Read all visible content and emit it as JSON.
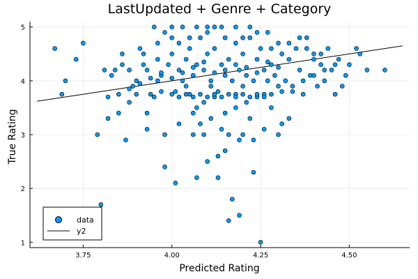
{
  "chart_data": {
    "type": "scatter",
    "title": "LastUpdated + Genre + Category",
    "xlabel": "Predicted Rating",
    "ylabel": "True Rating",
    "xlim": [
      3.6,
      4.67
    ],
    "ylim": [
      0.9,
      5.1
    ],
    "xticks": [
      3.75,
      4.0,
      4.25,
      4.5
    ],
    "xtick_labels": [
      "3.75",
      "4.00",
      "4.25",
      "4.50"
    ],
    "yticks": [
      1,
      2,
      3,
      4,
      5
    ],
    "ytick_labels": [
      "1",
      "2",
      "3",
      "4",
      "5"
    ],
    "grid": true,
    "legend_position": "bottom-left",
    "series": [
      {
        "name": "data",
        "kind": "scatter",
        "color": "#009AFA",
        "points": [
          [
            3.67,
            4.6
          ],
          [
            3.69,
            3.75
          ],
          [
            3.7,
            4.0
          ],
          [
            3.73,
            4.4
          ],
          [
            3.75,
            4.7
          ],
          [
            3.79,
            3.0
          ],
          [
            3.8,
            1.7
          ],
          [
            3.81,
            4.2
          ],
          [
            3.82,
            3.3
          ],
          [
            3.83,
            4.1
          ],
          [
            3.84,
            4.2
          ],
          [
            3.85,
            3.4
          ],
          [
            3.86,
            4.3
          ],
          [
            3.86,
            4.5
          ],
          [
            3.87,
            2.9
          ],
          [
            3.88,
            3.6
          ],
          [
            3.89,
            3.9
          ],
          [
            3.9,
            4.0
          ],
          [
            3.9,
            3.75
          ],
          [
            3.91,
            4.6
          ],
          [
            3.92,
            4.3
          ],
          [
            3.93,
            3.1
          ],
          [
            3.93,
            3.4
          ],
          [
            3.93,
            4.2
          ],
          [
            3.94,
            3.75
          ],
          [
            3.95,
            3.7
          ],
          [
            3.96,
            4.0
          ],
          [
            3.96,
            4.4
          ],
          [
            3.97,
            3.8
          ],
          [
            3.97,
            4.1
          ],
          [
            3.98,
            2.4
          ],
          [
            3.99,
            4.3
          ],
          [
            4.0,
            5.0
          ],
          [
            4.0,
            4.5
          ],
          [
            4.01,
            3.8
          ],
          [
            4.01,
            2.1
          ],
          [
            4.02,
            4.2
          ],
          [
            4.02,
            4.7
          ],
          [
            4.03,
            4.0
          ],
          [
            4.03,
            5.0
          ],
          [
            4.04,
            3.9
          ],
          [
            4.04,
            4.4
          ],
          [
            4.05,
            3.75
          ],
          [
            4.05,
            4.6
          ],
          [
            4.06,
            3.0
          ],
          [
            4.06,
            4.1
          ],
          [
            4.07,
            4.3
          ],
          [
            4.07,
            3.5
          ],
          [
            4.08,
            4.8
          ],
          [
            4.08,
            3.2
          ],
          [
            4.09,
            3.0
          ],
          [
            4.09,
            4.2
          ],
          [
            4.1,
            4.5
          ],
          [
            4.1,
            5.0
          ],
          [
            4.11,
            3.9
          ],
          [
            4.11,
            4.0
          ],
          [
            4.12,
            3.7
          ],
          [
            4.12,
            4.6
          ],
          [
            4.13,
            2.2
          ],
          [
            4.13,
            3.8
          ],
          [
            4.14,
            4.3
          ],
          [
            4.14,
            5.0
          ],
          [
            4.15,
            4.1
          ],
          [
            4.15,
            3.4
          ],
          [
            4.16,
            4.4
          ],
          [
            4.16,
            3.0
          ],
          [
            4.17,
            1.8
          ],
          [
            4.17,
            4.0
          ],
          [
            4.18,
            4.7
          ],
          [
            4.18,
            3.75
          ],
          [
            4.19,
            4.2
          ],
          [
            4.19,
            2.9
          ],
          [
            4.2,
            3.9
          ],
          [
            4.2,
            4.5
          ],
          [
            4.21,
            3.6
          ],
          [
            4.21,
            4.1
          ],
          [
            4.22,
            4.8
          ],
          [
            4.22,
            3.3
          ],
          [
            4.23,
            4.0
          ],
          [
            4.23,
            2.3
          ],
          [
            4.24,
            4.4
          ],
          [
            4.24,
            3.7
          ],
          [
            4.25,
            4.6
          ],
          [
            4.25,
            1.0
          ],
          [
            4.26,
            4.2
          ],
          [
            4.26,
            3.75
          ],
          [
            4.27,
            4.9
          ],
          [
            4.27,
            4.0
          ],
          [
            4.28,
            3.5
          ],
          [
            4.28,
            4.3
          ],
          [
            4.29,
            4.1
          ],
          [
            4.3,
            4.7
          ],
          [
            4.3,
            3.9
          ],
          [
            4.31,
            4.5
          ],
          [
            4.31,
            3.2
          ],
          [
            4.32,
            4.0
          ],
          [
            4.33,
            4.4
          ],
          [
            4.34,
            3.8
          ],
          [
            4.35,
            4.6
          ],
          [
            4.36,
            4.2
          ],
          [
            4.37,
            3.75
          ],
          [
            4.38,
            4.8
          ],
          [
            4.39,
            4.1
          ],
          [
            4.4,
            4.5
          ],
          [
            4.41,
            3.9
          ],
          [
            4.42,
            4.3
          ],
          [
            4.43,
            4.0
          ],
          [
            4.44,
            4.6
          ],
          [
            4.45,
            4.2
          ],
          [
            4.46,
            3.75
          ],
          [
            4.47,
            4.4
          ],
          [
            4.48,
            3.9
          ],
          [
            4.5,
            4.3
          ],
          [
            4.52,
            4.6
          ],
          [
            4.53,
            4.5
          ],
          [
            4.55,
            4.2
          ],
          [
            4.6,
            4.2
          ],
          [
            3.95,
            5.0
          ],
          [
            3.98,
            4.9
          ],
          [
            4.07,
            5.0
          ],
          [
            4.12,
            5.0
          ],
          [
            4.18,
            5.0
          ],
          [
            4.22,
            5.0
          ],
          [
            4.24,
            4.9
          ],
          [
            4.2,
            4.8
          ],
          [
            4.15,
            4.8
          ],
          [
            4.1,
            4.9
          ],
          [
            4.05,
            4.8
          ],
          [
            4.16,
            1.4
          ],
          [
            4.19,
            1.5
          ],
          [
            4.1,
            2.5
          ],
          [
            4.13,
            2.6
          ],
          [
            4.15,
            2.7
          ],
          [
            4.07,
            2.2
          ],
          [
            4.2,
            3.0
          ],
          [
            4.23,
            2.9
          ],
          [
            4.26,
            3.1
          ],
          [
            4.3,
            3.0
          ],
          [
            4.33,
            3.3
          ],
          [
            3.98,
            3.0
          ],
          [
            4.02,
            3.2
          ],
          [
            4.06,
            3.4
          ],
          [
            4.09,
            3.6
          ],
          [
            4.11,
            3.3
          ],
          [
            4.14,
            3.1
          ],
          [
            4.18,
            3.5
          ],
          [
            3.88,
            4.2
          ],
          [
            3.92,
            4.5
          ],
          [
            3.96,
            4.7
          ],
          [
            4.0,
            4.8
          ],
          [
            4.28,
            4.6
          ],
          [
            4.33,
            4.7
          ],
          [
            4.36,
            4.8
          ],
          [
            4.38,
            4.6
          ],
          [
            4.4,
            4.4
          ],
          [
            4.42,
            4.5
          ],
          [
            4.3,
            4.25
          ],
          [
            4.27,
            4.35
          ],
          [
            4.24,
            4.15
          ],
          [
            4.21,
            4.25
          ],
          [
            4.18,
            4.3
          ],
          [
            4.15,
            4.2
          ],
          [
            4.12,
            4.15
          ],
          [
            4.09,
            4.35
          ],
          [
            4.06,
            4.25
          ],
          [
            4.03,
            4.15
          ],
          [
            4.0,
            4.05
          ],
          [
            3.97,
            4.15
          ],
          [
            3.94,
            4.05
          ],
          [
            3.91,
            3.95
          ],
          [
            3.88,
            3.85
          ],
          [
            3.85,
            3.75
          ],
          [
            3.82,
            3.7
          ],
          [
            4.28,
            3.75
          ],
          [
            4.31,
            3.8
          ],
          [
            4.34,
            3.9
          ],
          [
            4.37,
            4.0
          ],
          [
            4.4,
            4.1
          ],
          [
            4.43,
            4.2
          ],
          [
            4.46,
            4.3
          ],
          [
            4.49,
            4.1
          ],
          [
            4.0,
            3.75
          ],
          [
            4.02,
            3.7
          ],
          [
            4.04,
            3.75
          ],
          [
            4.06,
            3.7
          ],
          [
            4.08,
            3.75
          ],
          [
            4.1,
            3.7
          ],
          [
            4.12,
            3.75
          ],
          [
            4.14,
            3.7
          ],
          [
            4.16,
            3.75
          ],
          [
            4.18,
            3.7
          ],
          [
            4.2,
            3.75
          ],
          [
            4.22,
            3.7
          ],
          [
            4.24,
            3.75
          ],
          [
            4.26,
            3.7
          ]
        ]
      },
      {
        "name": "y2",
        "kind": "line",
        "color": "#000000",
        "points": [
          [
            3.62,
            3.62
          ],
          [
            4.65,
            4.65
          ]
        ]
      }
    ]
  }
}
